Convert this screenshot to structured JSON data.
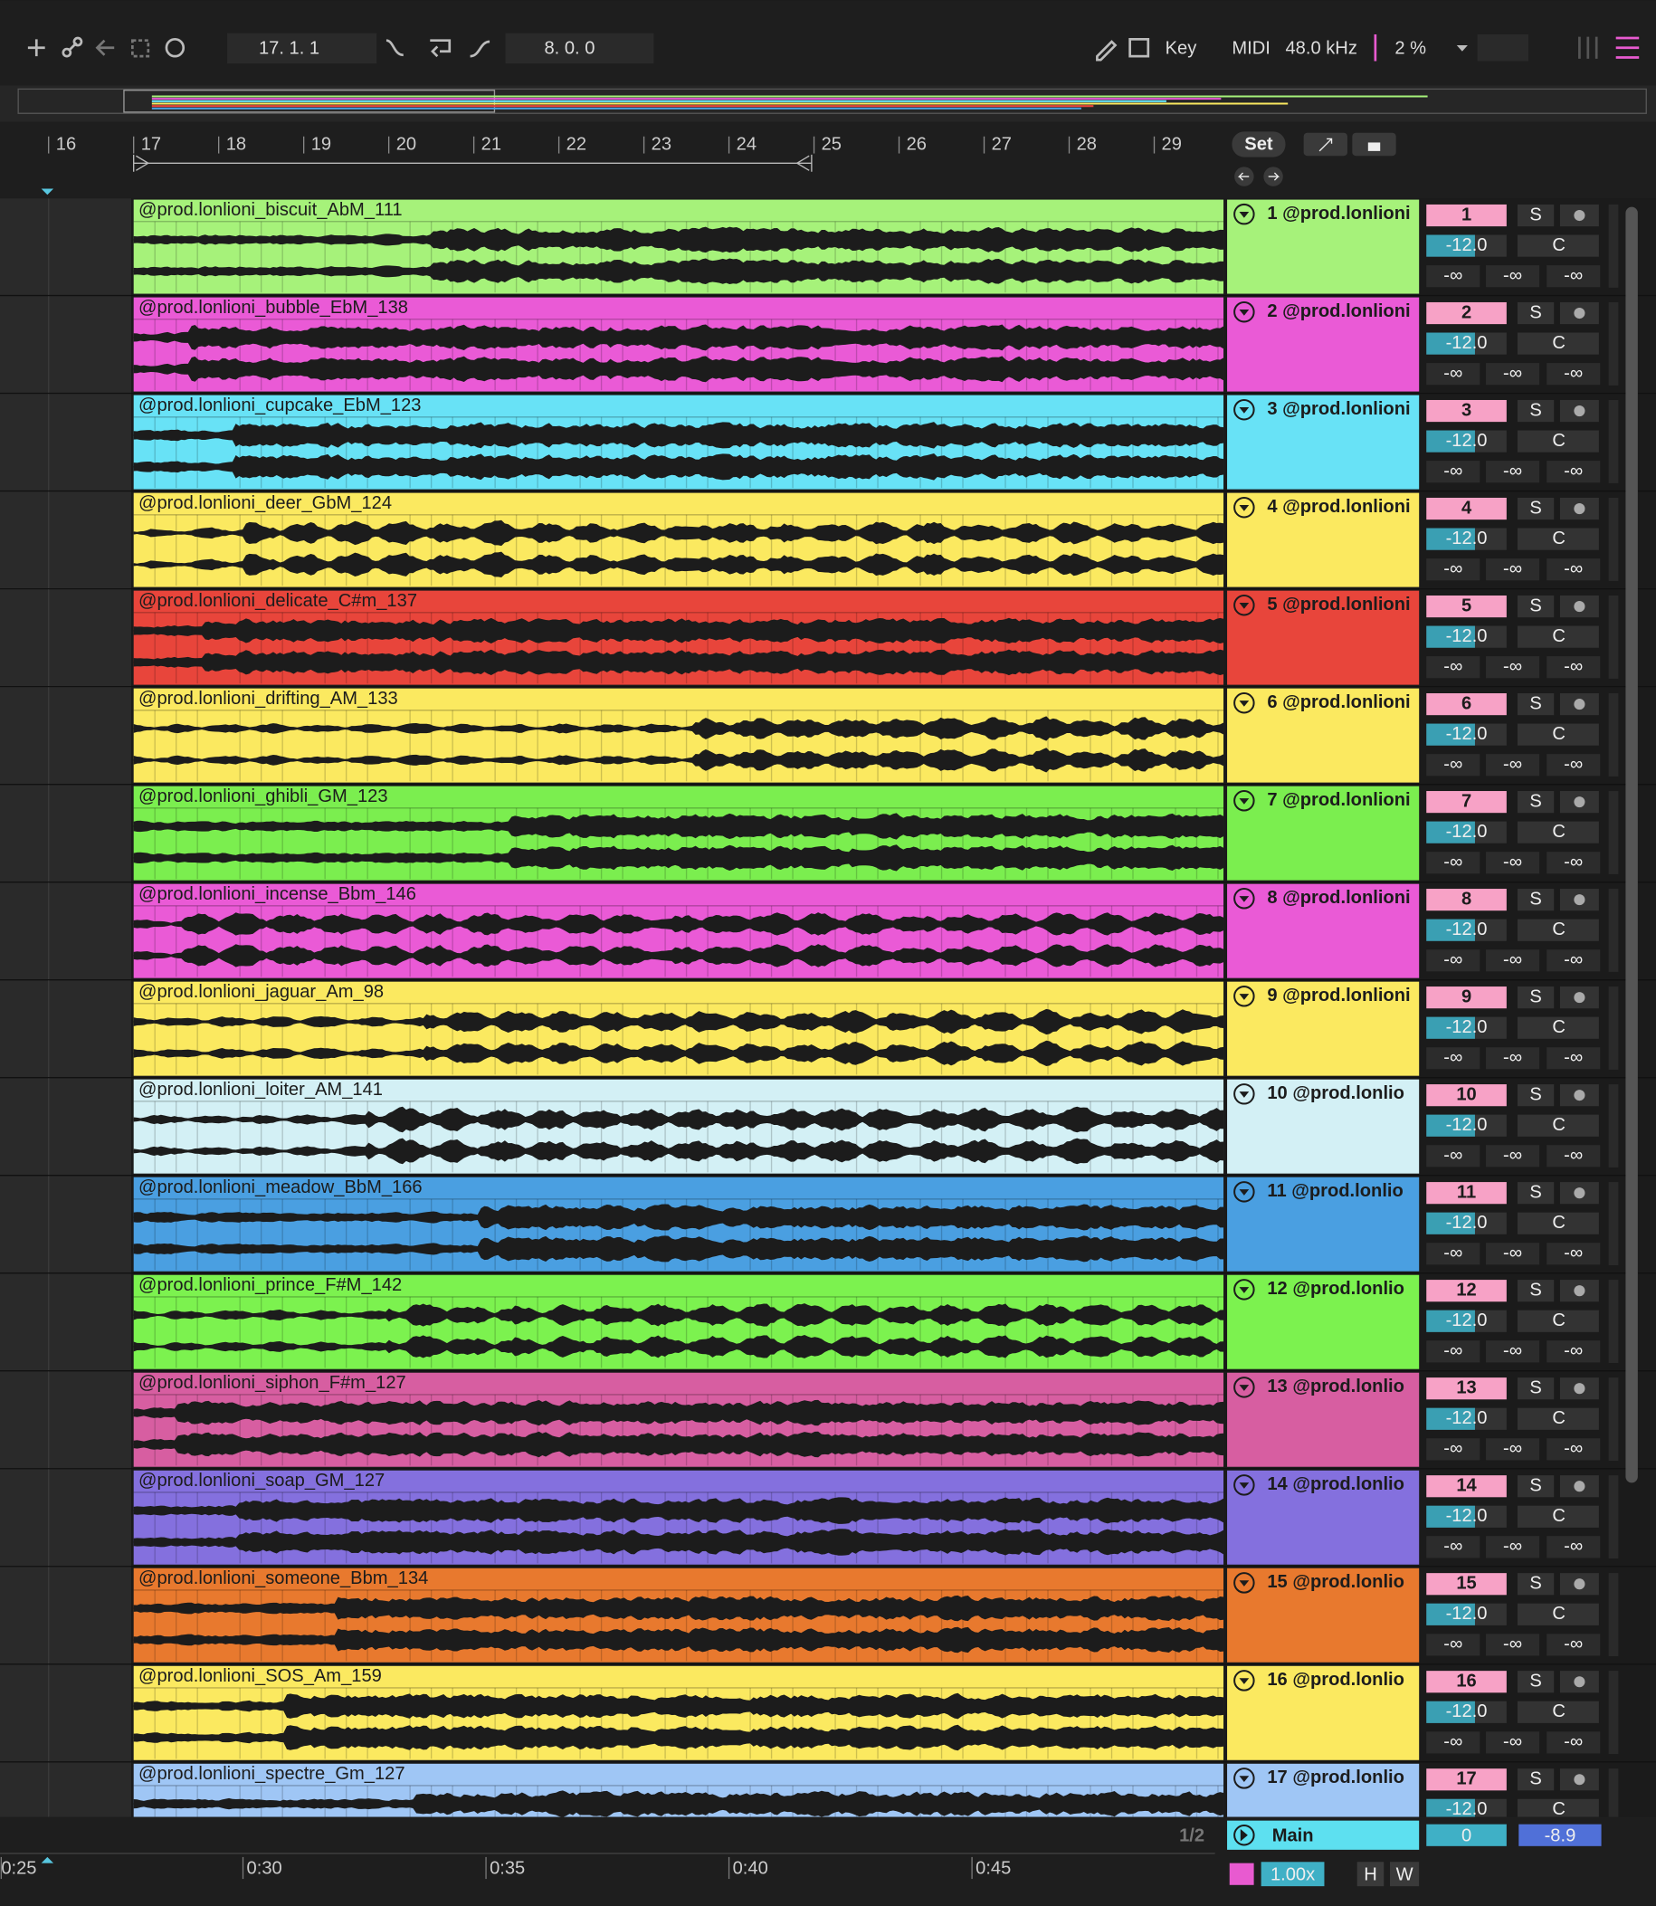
{
  "toolbar": {
    "position": "17. 1. 1",
    "length": "8. 0. 0",
    "key": "Key",
    "midi": "MIDI",
    "sample_rate": "48.0 kHz",
    "cpu": "2 %"
  },
  "ruler": [
    16,
    17,
    18,
    19,
    20,
    21,
    22,
    23,
    24,
    25,
    26,
    27,
    28,
    29
  ],
  "set_button": "Set",
  "tracks": [
    {
      "clip": "@prod.lonlioni_biscuit_AbM_111",
      "name": "1 @prod.lonlioni",
      "number": "1",
      "color": "#a6f27a"
    },
    {
      "clip": "@prod.lonlioni_bubble_EbM_138",
      "name": "2 @prod.lonlioni",
      "number": "2",
      "color": "#ea5ad6"
    },
    {
      "clip": "@prod.lonlioni_cupcake_EbM_123",
      "name": "3 @prod.lonlioni",
      "number": "3",
      "color": "#68e2f6"
    },
    {
      "clip": "@prod.lonlioni_deer_GbM_124",
      "name": "4 @prod.lonlioni",
      "number": "4",
      "color": "#fbe960"
    },
    {
      "clip": "@prod.lonlioni_delicate_C#m_137",
      "name": "5 @prod.lonlioni",
      "number": "5",
      "color": "#e8453b"
    },
    {
      "clip": "@prod.lonlioni_drifting_AM_133",
      "name": "6 @prod.lonlioni",
      "number": "6",
      "color": "#fbe960"
    },
    {
      "clip": "@prod.lonlioni_ghibli_GM_123",
      "name": "7 @prod.lonlioni",
      "number": "7",
      "color": "#7bee4f"
    },
    {
      "clip": "@prod.lonlioni_incense_Bbm_146",
      "name": "8 @prod.lonlioni",
      "number": "8",
      "color": "#ea5ad6"
    },
    {
      "clip": "@prod.lonlioni_jaguar_Am_98",
      "name": "9 @prod.lonlioni",
      "number": "9",
      "color": "#fbe960"
    },
    {
      "clip": "@prod.lonlioni_loiter_AM_141",
      "name": "10 @prod.lonlio",
      "number": "10",
      "color": "#d3f0f5"
    },
    {
      "clip": "@prod.lonlioni_meadow_BbM_166",
      "name": "11 @prod.lonlio",
      "number": "11",
      "color": "#4a9fe1"
    },
    {
      "clip": "@prod.lonlioni_prince_F#M_142",
      "name": "12 @prod.lonlio",
      "number": "12",
      "color": "#7cf24f"
    },
    {
      "clip": "@prod.lonlioni_siphon_F#m_127",
      "name": "13 @prod.lonlio",
      "number": "13",
      "color": "#d75ea1"
    },
    {
      "clip": "@prod.lonlioni_soap_GM_127",
      "name": "14 @prod.lonlio",
      "number": "14",
      "color": "#8470de"
    },
    {
      "clip": "@prod.lonlioni_someone_Bbm_134",
      "name": "15 @prod.lonlio",
      "number": "15",
      "color": "#e8792e"
    },
    {
      "clip": "@prod.lonlioni_SOS_Am_159",
      "name": "16 @prod.lonlio",
      "number": "16",
      "color": "#fbe960"
    },
    {
      "clip": "@prod.lonlioni_spectre_Gm_127",
      "name": "17 @prod.lonlio",
      "number": "17",
      "color": "#9fc6f5"
    }
  ],
  "mixer": {
    "solo": "S",
    "volume": "-12.0",
    "pan": "C",
    "meter": "-∞"
  },
  "main": {
    "page": "1/2",
    "name": "Main",
    "volume": "0",
    "peak": "-8.9"
  },
  "time_ruler": [
    "0:25",
    "0:30",
    "0:35",
    "0:40",
    "0:45"
  ],
  "footer": {
    "zoom": "1.00x",
    "h": "H",
    "w": "W"
  }
}
